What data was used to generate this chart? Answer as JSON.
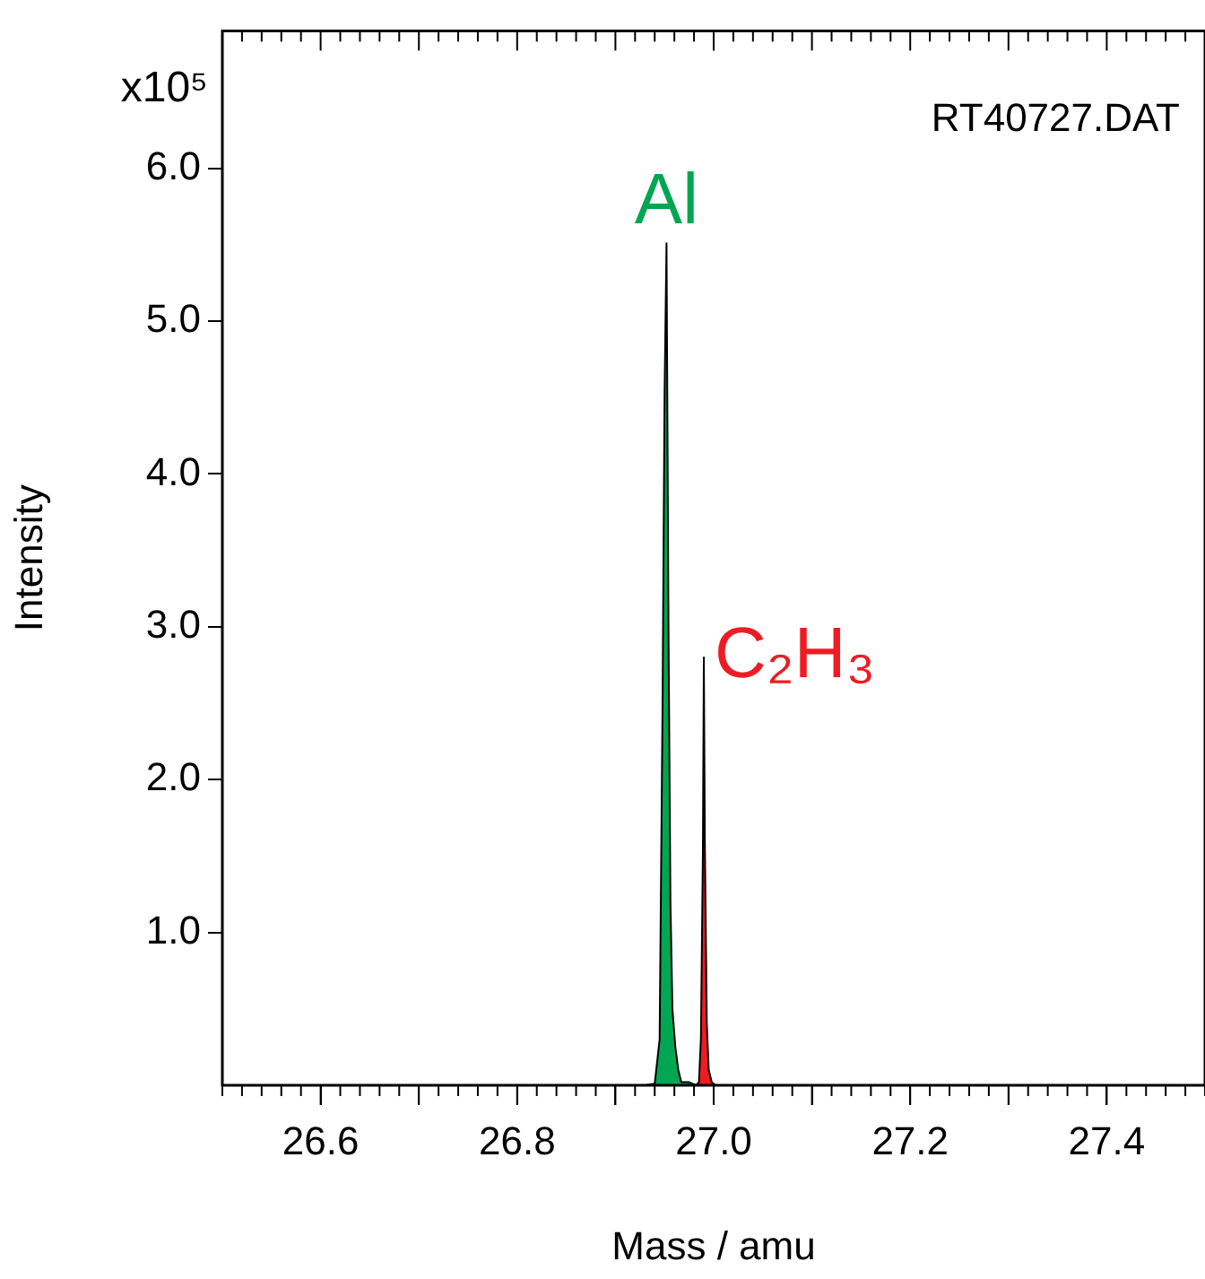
{
  "chart_data": {
    "type": "area",
    "xlabel": "Mass / amu",
    "ylabel": "Intensity",
    "annotations": [
      "x10⁵",
      "RT40727.DAT"
    ],
    "xlim": [
      26.5,
      27.5
    ],
    "ylim": [
      0,
      6.9
    ],
    "xticks": [
      26.6,
      {
        "value": 26.7,
        "label": null
      },
      26.8,
      {
        "value": 26.9,
        "label": null
      },
      {
        "value": 27,
        "label": "27.0"
      },
      {
        "value": 27.1,
        "label": null
      },
      27.2,
      {
        "value": 27.3,
        "label": null
      },
      27.4
    ],
    "yticks": [
      {
        "value": 1,
        "label": "1.0"
      },
      {
        "value": 2,
        "label": "2.0"
      },
      {
        "value": 3,
        "label": "3.0"
      },
      {
        "value": 4,
        "label": "4.0"
      },
      {
        "value": 5,
        "label": "5.0"
      },
      {
        "value": 6,
        "label": "6.0"
      }
    ],
    "grid": false,
    "legend": false,
    "series": [
      {
        "name": "Al",
        "color": "#00a651",
        "x": [
          26.93,
          26.94,
          26.945,
          26.948,
          26.95,
          26.952,
          26.954,
          26.956,
          26.958,
          26.961,
          26.964,
          26.967,
          26.975,
          26.982
        ],
        "values": [
          0,
          0.01,
          0.3,
          2.5,
          4.5,
          5.51,
          3.0,
          1.2,
          0.5,
          0.25,
          0.1,
          0.02,
          0.02,
          0
        ]
      },
      {
        "name": "C₂H₃",
        "color": "#ed1c24",
        "x": [
          26.982,
          26.985,
          26.987,
          26.989,
          26.99,
          26.991,
          26.993,
          26.995,
          26.998,
          27.002
        ],
        "values": [
          0,
          0.02,
          0.3,
          1.5,
          2.8,
          1.6,
          0.4,
          0.1,
          0.02,
          0
        ]
      }
    ]
  }
}
